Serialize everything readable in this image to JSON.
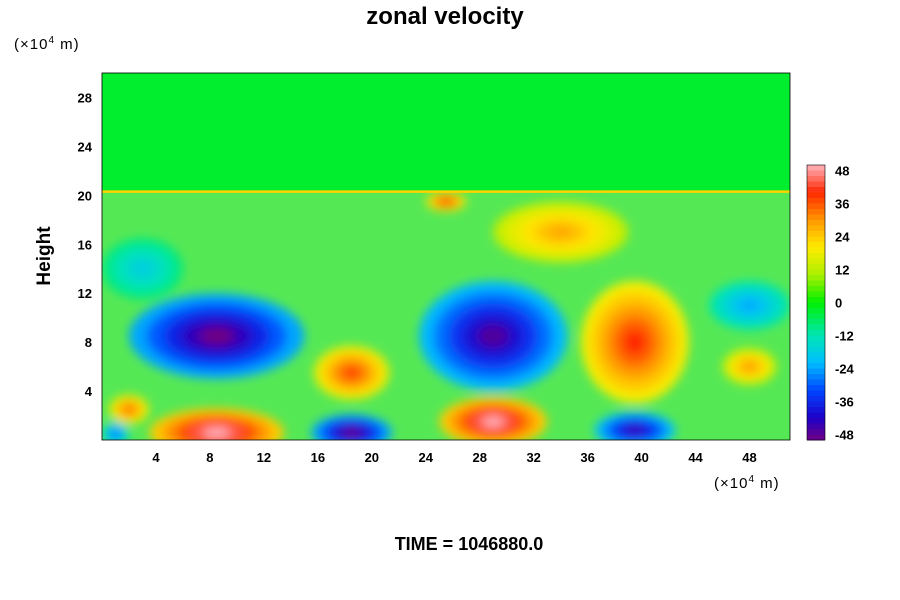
{
  "chart_data": {
    "type": "heatmap",
    "title": "zonal velocity",
    "ylabel": "Height",
    "x_unit_label": "(×10^4 m)",
    "y_unit_label": "(×10^4 m)",
    "x_unit_base": "(×10",
    "x_unit_exp": "4",
    "x_unit_tail": " m)",
    "y_unit_base": "(×10",
    "y_unit_exp": "4",
    "y_unit_tail": " m)",
    "xlim": [
      0,
      51
    ],
    "ylim": [
      0,
      30
    ],
    "x_ticks": [
      "4",
      "8",
      "12",
      "16",
      "20",
      "24",
      "28",
      "32",
      "36",
      "40",
      "44",
      "48"
    ],
    "y_ticks": [
      "4",
      "8",
      "12",
      "16",
      "20",
      "24",
      "28"
    ],
    "colorbar": {
      "range": [
        -50,
        50
      ],
      "ticks": [
        "48",
        "36",
        "24",
        "12",
        "0",
        "-12",
        "-24",
        "-36",
        "-48"
      ]
    },
    "features": [
      {
        "x": 8.5,
        "y": 8.5,
        "value": -50,
        "rx": 6.5,
        "ry": 3.5
      },
      {
        "x": 29,
        "y": 8.5,
        "value": -47,
        "rx": 5.5,
        "ry": 4.5
      },
      {
        "x": 39.5,
        "y": 8,
        "value": 40,
        "rx": 4,
        "ry": 5
      },
      {
        "x": 18.5,
        "y": 5.5,
        "value": 38,
        "rx": 2.8,
        "ry": 2.2
      },
      {
        "x": 8.5,
        "y": 0.6,
        "value": 50,
        "rx": 5,
        "ry": 2
      },
      {
        "x": 29,
        "y": 1.5,
        "value": 50,
        "rx": 4,
        "ry": 2
      },
      {
        "x": 18.5,
        "y": 0.6,
        "value": -50,
        "rx": 3,
        "ry": 1.5
      },
      {
        "x": 39.5,
        "y": 0.8,
        "value": -45,
        "rx": 3,
        "ry": 1.5
      },
      {
        "x": 2,
        "y": 2.5,
        "value": 35,
        "rx": 1.5,
        "ry": 1.2
      },
      {
        "x": 3,
        "y": 14,
        "value": -18,
        "rx": 3,
        "ry": 2.5
      },
      {
        "x": 34,
        "y": 17,
        "value": 28,
        "rx": 5,
        "ry": 2.5
      },
      {
        "x": 25.5,
        "y": 19.5,
        "value": 40,
        "rx": 1.5,
        "ry": 0.8
      },
      {
        "x": 48,
        "y": 11,
        "value": -24,
        "rx": 3,
        "ry": 2
      },
      {
        "x": 1,
        "y": 0.5,
        "value": -30,
        "rx": 1,
        "ry": 1
      },
      {
        "x": 48,
        "y": 6,
        "value": 30,
        "rx": 2,
        "ry": 1.5
      }
    ],
    "upper_layer_value": -3,
    "tropopause_height": 20.3
  },
  "footer": "TIME = 1046880.0"
}
